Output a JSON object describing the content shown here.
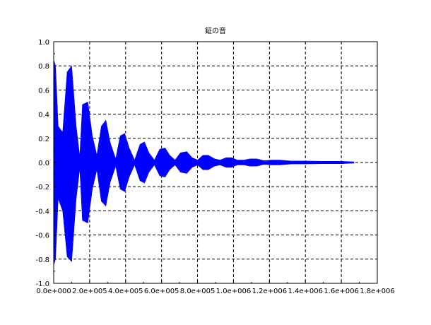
{
  "chart_data": {
    "type": "line",
    "title": "鉦の音",
    "xlabel": "",
    "ylabel": "",
    "xlim": [
      0,
      1800000
    ],
    "ylim": [
      -1.0,
      1.0
    ],
    "x_ticks": [
      0,
      200000,
      400000,
      600000,
      800000,
      1000000,
      1200000,
      1400000,
      1600000,
      1800000
    ],
    "x_tick_labels": [
      "0.0e+000",
      "2.0e+005",
      "4.0e+005",
      "6.0e+005",
      "8.0e+005",
      "1.0e+006",
      "1.2e+006",
      "1.4e+006",
      "1.6e+006",
      "1.8e+006"
    ],
    "y_ticks": [
      -1.0,
      -0.8,
      -0.6,
      -0.4,
      -0.2,
      0.0,
      0.2,
      0.4,
      0.6,
      0.8,
      1.0
    ],
    "y_tick_labels": [
      "-1.0",
      "-0.8",
      "-0.6",
      "-0.4",
      "-0.2",
      "0.0",
      "0.2",
      "0.4",
      "0.6",
      "0.8",
      "1.0"
    ],
    "grid": true,
    "series": [
      {
        "color": "#0000ff",
        "x_end": 1670000,
        "envelope": {
          "x": [
            0,
            10000,
            25000,
            50000,
            75000,
            100000,
            125000,
            145000,
            160000,
            190000,
            215000,
            240000,
            265000,
            290000,
            315000,
            345000,
            370000,
            395000,
            420000,
            450000,
            480000,
            505000,
            530000,
            560000,
            590000,
            620000,
            645000,
            675000,
            705000,
            740000,
            770000,
            800000,
            830000,
            860000,
            895000,
            925000,
            960000,
            990000,
            1020000,
            1060000,
            1090000,
            1130000,
            1170000,
            1210000,
            1260000,
            1320000,
            1400000,
            1500000,
            1600000,
            1670000
          ],
          "upper": [
            0.85,
            0.8,
            0.3,
            0.25,
            0.75,
            0.8,
            0.3,
            0.05,
            0.48,
            0.5,
            0.22,
            0.06,
            0.3,
            0.35,
            0.16,
            0.03,
            0.22,
            0.24,
            0.12,
            0.02,
            0.15,
            0.17,
            0.08,
            0.02,
            0.11,
            0.12,
            0.06,
            0.02,
            0.08,
            0.09,
            0.04,
            0.02,
            0.06,
            0.06,
            0.03,
            0.02,
            0.04,
            0.04,
            0.02,
            0.02,
            0.03,
            0.03,
            0.015,
            0.02,
            0.02,
            0.012,
            0.012,
            0.01,
            0.01,
            0.005
          ],
          "lower": [
            -0.85,
            -0.8,
            -0.3,
            -0.4,
            -0.78,
            -0.82,
            -0.3,
            -0.05,
            -0.48,
            -0.5,
            -0.22,
            -0.06,
            -0.32,
            -0.36,
            -0.16,
            -0.03,
            -0.22,
            -0.24,
            -0.12,
            -0.02,
            -0.15,
            -0.17,
            -0.08,
            -0.02,
            -0.11,
            -0.12,
            -0.06,
            -0.02,
            -0.08,
            -0.09,
            -0.04,
            -0.02,
            -0.06,
            -0.06,
            -0.03,
            -0.02,
            -0.04,
            -0.04,
            -0.02,
            -0.02,
            -0.03,
            -0.03,
            -0.015,
            -0.02,
            -0.02,
            -0.012,
            -0.012,
            -0.01,
            -0.01,
            -0.005
          ]
        }
      }
    ]
  }
}
